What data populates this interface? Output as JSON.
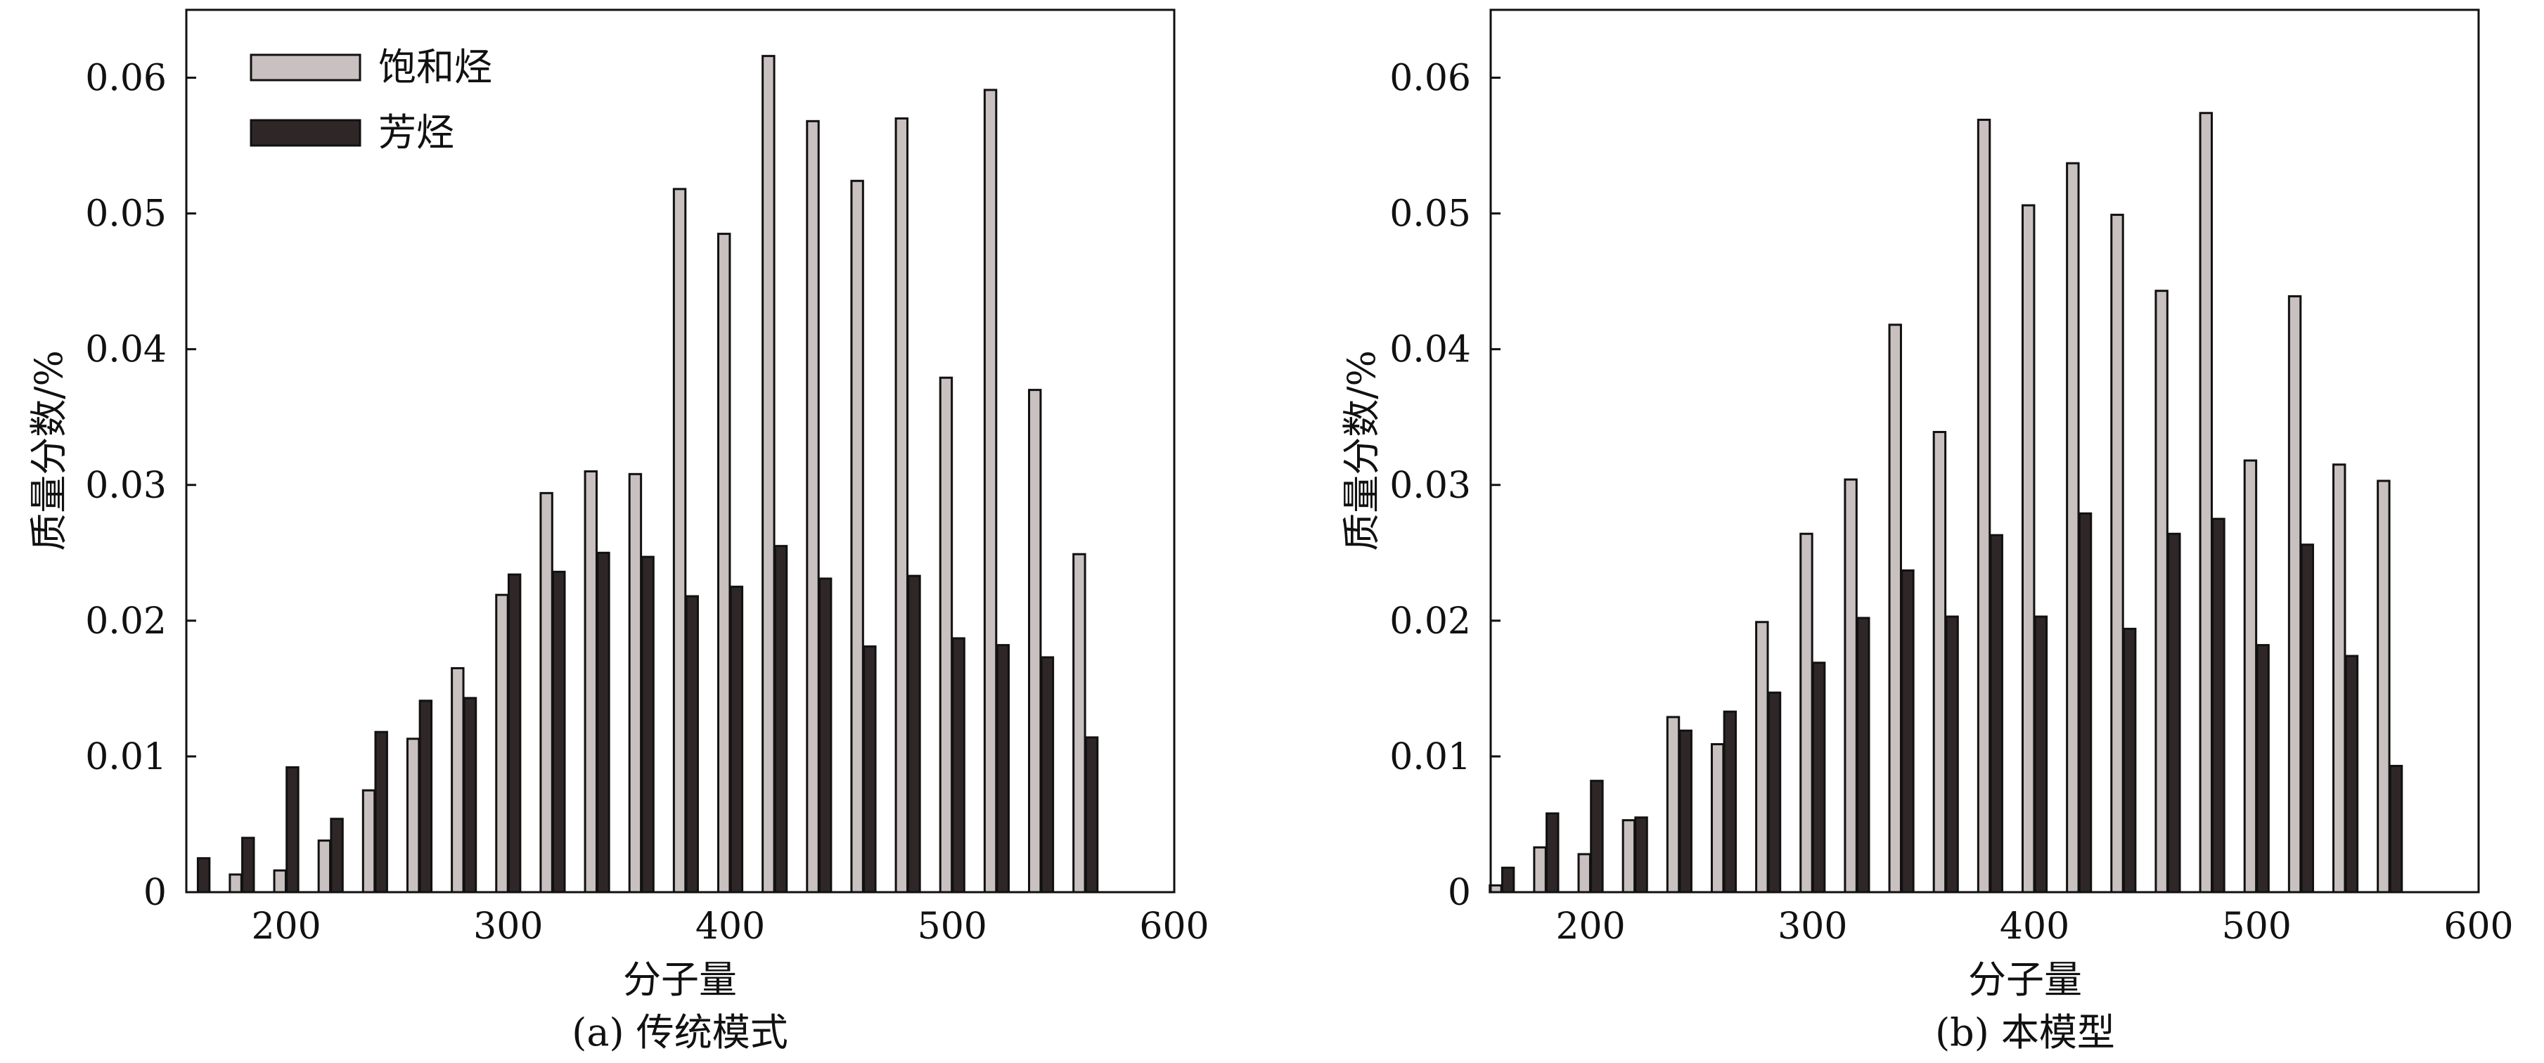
{
  "colors": {
    "saturated": "#c9c0c0",
    "aromatic": "#2f2727",
    "stroke": "#111111"
  },
  "chart_data": [
    {
      "type": "bar",
      "caption": "(a) 传统模式",
      "xlabel": "分子量",
      "ylabel": "质量分数/%",
      "xlim": [
        155,
        600
      ],
      "ylim": [
        0,
        0.065
      ],
      "xticks": [
        200,
        300,
        400,
        500,
        600
      ],
      "yticks": [
        "0",
        "0.01",
        "0.02",
        "0.03",
        "0.04",
        "0.05",
        "0.06"
      ],
      "legend_position": "top-left",
      "categories": [
        160,
        180,
        200,
        220,
        240,
        260,
        280,
        300,
        320,
        340,
        360,
        380,
        400,
        420,
        440,
        460,
        480,
        500,
        520,
        540,
        560
      ],
      "series": [
        {
          "name": "饱和烃",
          "values": [
            0.0,
            0.0013,
            0.0016,
            0.0038,
            0.0075,
            0.0113,
            0.0165,
            0.0219,
            0.0294,
            0.031,
            0.0308,
            0.0518,
            0.0485,
            0.0616,
            0.0568,
            0.0524,
            0.057,
            0.0379,
            0.0591,
            0.037,
            0.0249
          ]
        },
        {
          "name": "芳烃",
          "values": [
            0.0025,
            0.004,
            0.0092,
            0.0054,
            0.0118,
            0.0141,
            0.0143,
            0.0234,
            0.0236,
            0.025,
            0.0247,
            0.0218,
            0.0225,
            0.0255,
            0.0231,
            0.0181,
            0.0233,
            0.0187,
            0.0182,
            0.0173,
            0.0114
          ]
        }
      ]
    },
    {
      "type": "bar",
      "caption": "(b) 本模型",
      "xlabel": "分子量",
      "ylabel": "质量分数/%",
      "xlim": [
        155,
        600
      ],
      "ylim": [
        0,
        0.065
      ],
      "xticks": [
        200,
        300,
        400,
        500,
        600
      ],
      "yticks": [
        "0",
        "0.01",
        "0.02",
        "0.03",
        "0.04",
        "0.05",
        "0.06"
      ],
      "categories": [
        160,
        180,
        200,
        220,
        240,
        260,
        280,
        300,
        320,
        340,
        360,
        380,
        400,
        420,
        440,
        460,
        480,
        500,
        520,
        540,
        560
      ],
      "series": [
        {
          "name": "饱和烃",
          "values": [
            0.0005,
            0.0033,
            0.0028,
            0.0053,
            0.0129,
            0.0109,
            0.0199,
            0.0264,
            0.0304,
            0.0418,
            0.0339,
            0.0569,
            0.0506,
            0.0537,
            0.0499,
            0.0443,
            0.0574,
            0.0318,
            0.0439,
            0.0315,
            0.0303
          ]
        },
        {
          "name": "芳烃",
          "values": [
            0.0018,
            0.0058,
            0.0082,
            0.0055,
            0.0119,
            0.0133,
            0.0147,
            0.0169,
            0.0202,
            0.0237,
            0.0203,
            0.0263,
            0.0203,
            0.0279,
            0.0194,
            0.0264,
            0.0275,
            0.0182,
            0.0256,
            0.0174,
            0.0093
          ]
        }
      ]
    }
  ]
}
